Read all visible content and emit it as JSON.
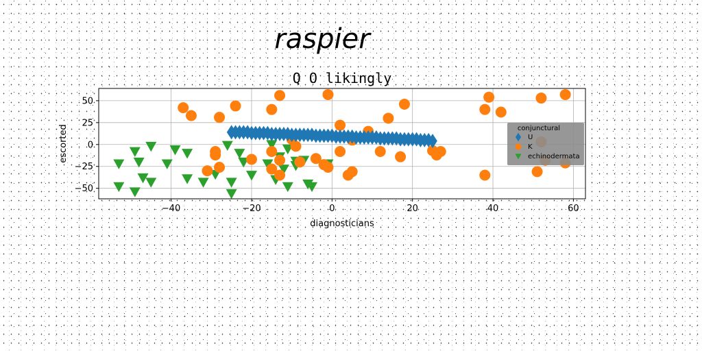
{
  "chart_data": {
    "type": "scatter",
    "suptitle": "raspier",
    "title": "Q O likingly",
    "xlabel": "diagnosticians",
    "ylabel": "escorted",
    "xlim": [
      -58,
      63
    ],
    "ylim": [
      -62,
      64
    ],
    "xticks": [
      -40,
      -20,
      0,
      20,
      40,
      60
    ],
    "yticks": [
      -50,
      -25,
      0,
      25,
      50
    ],
    "xtick_labels": [
      "−40",
      "−20",
      "0",
      "20",
      "40",
      "60"
    ],
    "ytick_labels": [
      "−50",
      "−25",
      "0",
      "25",
      "50"
    ],
    "grid": true,
    "legend": {
      "title": "conjunctural",
      "placement": "right",
      "background": "#8c8c8c"
    },
    "series": [
      {
        "name": "U",
        "marker": "diamond",
        "color": "#1f77b4",
        "points": [
          [
            -25,
            14
          ],
          [
            -24,
            14
          ],
          [
            -23,
            14
          ],
          [
            -22,
            14
          ],
          [
            -21,
            14
          ],
          [
            -20,
            13
          ],
          [
            -19,
            13
          ],
          [
            -18,
            13
          ],
          [
            -17,
            13
          ],
          [
            -16,
            13
          ],
          [
            -15,
            12
          ],
          [
            -14,
            12
          ],
          [
            -13,
            12
          ],
          [
            -12,
            12
          ],
          [
            -11,
            12
          ],
          [
            -10,
            11
          ],
          [
            -9,
            11
          ],
          [
            -8,
            11
          ],
          [
            -7,
            11
          ],
          [
            -6,
            11
          ],
          [
            -5,
            11
          ],
          [
            -4,
            10
          ],
          [
            -3,
            10
          ],
          [
            -2,
            10
          ],
          [
            -1,
            10
          ],
          [
            0,
            10
          ],
          [
            1,
            9
          ],
          [
            2,
            9
          ],
          [
            3,
            9
          ],
          [
            4,
            9
          ],
          [
            5,
            9
          ],
          [
            6,
            8
          ],
          [
            7,
            8
          ],
          [
            8,
            8
          ],
          [
            9,
            8
          ],
          [
            10,
            8
          ],
          [
            11,
            8
          ],
          [
            12,
            7
          ],
          [
            13,
            7
          ],
          [
            14,
            7
          ],
          [
            15,
            7
          ],
          [
            16,
            7
          ],
          [
            17,
            6
          ],
          [
            18,
            6
          ],
          [
            19,
            6
          ],
          [
            20,
            6
          ],
          [
            21,
            6
          ],
          [
            22,
            5
          ],
          [
            23,
            5
          ],
          [
            24,
            5
          ],
          [
            25,
            4
          ]
        ]
      },
      {
        "name": "K",
        "marker": "circle",
        "color": "#ff7f0e",
        "points": [
          [
            -37,
            42
          ],
          [
            -35,
            33
          ],
          [
            -28,
            31
          ],
          [
            -24,
            44
          ],
          [
            -15,
            40
          ],
          [
            -13,
            56
          ],
          [
            -1,
            57
          ],
          [
            2,
            22
          ],
          [
            -10,
            6
          ],
          [
            -9,
            -2
          ],
          [
            -8,
            -20
          ],
          [
            -15,
            -8
          ],
          [
            -20,
            -17
          ],
          [
            -15,
            -28
          ],
          [
            -13,
            -35
          ],
          [
            -4,
            -16
          ],
          [
            -2,
            -23
          ],
          [
            -1,
            -26
          ],
          [
            2,
            -8
          ],
          [
            4,
            -35
          ],
          [
            5,
            -31
          ],
          [
            5,
            5
          ],
          [
            9,
            15
          ],
          [
            12,
            -8
          ],
          [
            14,
            30
          ],
          [
            17,
            -14
          ],
          [
            18,
            46
          ],
          [
            25,
            -7
          ],
          [
            26,
            -12
          ],
          [
            27,
            -8
          ],
          [
            38,
            40
          ],
          [
            38,
            -35
          ],
          [
            39,
            54
          ],
          [
            42,
            37
          ],
          [
            51,
            -31
          ],
          [
            52,
            53
          ],
          [
            52,
            3
          ],
          [
            53,
            -18
          ],
          [
            58,
            57
          ],
          [
            58,
            -21
          ],
          [
            -29,
            -8
          ],
          [
            -29,
            -12
          ],
          [
            -31,
            -30
          ],
          [
            -28,
            -26
          ],
          [
            -13,
            -18
          ]
        ]
      },
      {
        "name": "echinodermata",
        "marker": "triangle-down",
        "color": "#2ca02c",
        "points": [
          [
            -53,
            -22
          ],
          [
            -53,
            -48
          ],
          [
            -49,
            -8
          ],
          [
            -49,
            -54
          ],
          [
            -48,
            -20
          ],
          [
            -47,
            -38
          ],
          [
            -45,
            -43
          ],
          [
            -45,
            -2
          ],
          [
            -41,
            -22
          ],
          [
            -39,
            -6
          ],
          [
            -36,
            -10
          ],
          [
            -36,
            -39
          ],
          [
            -32,
            -43
          ],
          [
            -29,
            -34
          ],
          [
            -26,
            -1
          ],
          [
            -25,
            -43
          ],
          [
            -25,
            -56
          ],
          [
            -23,
            -10
          ],
          [
            -22,
            -20
          ],
          [
            -20,
            -35
          ],
          [
            -16,
            -22
          ],
          [
            -15,
            0
          ],
          [
            -14,
            -40
          ],
          [
            -13,
            -14
          ],
          [
            -12,
            -28
          ],
          [
            -11,
            -5
          ],
          [
            -11,
            -48
          ],
          [
            -9,
            -19
          ],
          [
            -9,
            -24
          ],
          [
            -7,
            -18
          ],
          [
            -6,
            -45
          ],
          [
            -5,
            -48
          ],
          [
            -1,
            -22
          ]
        ]
      }
    ]
  }
}
